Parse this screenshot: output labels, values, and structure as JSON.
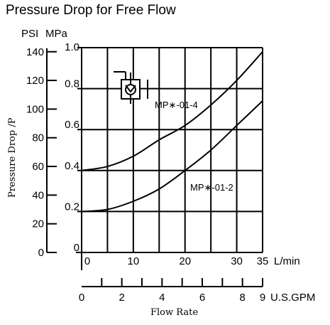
{
  "chart_data": {
    "type": "line",
    "title": "Pressure Drop for Free Flow",
    "ylabel": "Pressure Drop ∕P",
    "xlabel": "Flow Rate",
    "y_units_left": "PSI",
    "y_units_right": "MPa",
    "x_units_metric": "L/min",
    "x_units_us": "U.S.GPM",
    "psi_ticks": [
      "0",
      "20",
      "40",
      "60",
      "80",
      "100",
      "120",
      "140"
    ],
    "psi_values": [
      0,
      20,
      40,
      60,
      80,
      100,
      120,
      140
    ],
    "mpa_ticks": [
      "0",
      "0.2",
      "0.4",
      "0.6",
      "0.8",
      "1.0"
    ],
    "mpa_values": [
      0,
      0.2,
      0.4,
      0.6,
      0.8,
      1.0
    ],
    "lmin_ticks": [
      "0",
      "10",
      "20",
      "30",
      "35"
    ],
    "lmin_values": [
      0,
      10,
      20,
      30,
      35
    ],
    "gpm_ticks": [
      "0",
      "2",
      "4",
      "6",
      "8",
      "9"
    ],
    "gpm_values": [
      0,
      2,
      4,
      6,
      8,
      9
    ],
    "xlim": [
      0,
      35
    ],
    "ylim": [
      0,
      1.0
    ],
    "grid": true,
    "series": [
      {
        "name": "MP∗-01-4",
        "x": [
          0,
          5,
          10,
          15,
          20,
          25,
          30,
          35
        ],
        "y": [
          0.4,
          0.42,
          0.47,
          0.55,
          0.62,
          0.72,
          0.84,
          0.98
        ]
      },
      {
        "name": "MP∗-01-2",
        "x": [
          0,
          5,
          10,
          15,
          20,
          25,
          30,
          35
        ],
        "y": [
          0.2,
          0.21,
          0.25,
          0.31,
          0.4,
          0.5,
          0.62,
          0.74
        ]
      }
    ]
  }
}
